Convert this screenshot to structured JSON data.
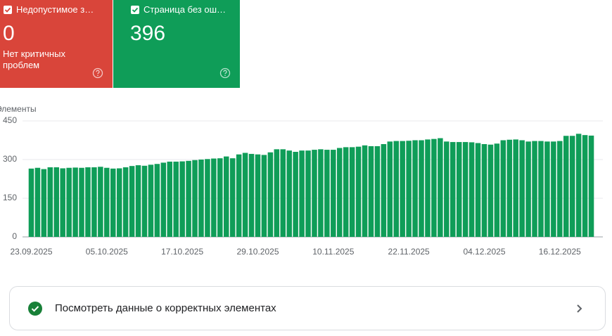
{
  "cards": [
    {
      "label": "Недопустимое з…",
      "value": 0,
      "description": "Нет критичных проблем"
    },
    {
      "label": "Страница без ош…",
      "value": 396
    }
  ],
  "chart_data": {
    "type": "bar",
    "y_label": "Элементы",
    "color": "#0f9d58",
    "grid": true,
    "ylim": [
      0,
      450
    ],
    "yticks": [
      0,
      150,
      300,
      450
    ],
    "categories": [
      "23.09.2025",
      null,
      null,
      null,
      null,
      null,
      null,
      null,
      null,
      null,
      null,
      null,
      "05.10.2025",
      null,
      null,
      null,
      null,
      null,
      null,
      null,
      null,
      null,
      null,
      null,
      "17.10.2025",
      null,
      null,
      null,
      null,
      null,
      null,
      null,
      null,
      null,
      null,
      null,
      "29.10.2025",
      null,
      null,
      null,
      null,
      null,
      null,
      null,
      null,
      null,
      null,
      null,
      "10.11.2025",
      null,
      null,
      null,
      null,
      null,
      null,
      null,
      null,
      null,
      null,
      null,
      "22.11.2025",
      null,
      null,
      null,
      null,
      null,
      null,
      null,
      null,
      null,
      null,
      null,
      "04.12.2025",
      null,
      null,
      null,
      null,
      null,
      null,
      null,
      null,
      null,
      null,
      null,
      "16.12.2025",
      null,
      null,
      null,
      null,
      null
    ],
    "values": [
      265,
      268,
      263,
      270,
      270,
      266,
      268,
      269,
      268,
      270,
      270,
      272,
      268,
      265,
      266,
      270,
      275,
      278,
      276,
      280,
      283,
      288,
      292,
      292,
      293,
      295,
      298,
      300,
      302,
      304,
      305,
      312,
      305,
      320,
      326,
      322,
      320,
      318,
      328,
      340,
      340,
      335,
      330,
      335,
      335,
      338,
      340,
      338,
      338,
      345,
      348,
      348,
      350,
      355,
      352,
      352,
      360,
      370,
      372,
      372,
      373,
      375,
      375,
      378,
      380,
      383,
      370,
      368,
      368,
      368,
      367,
      364,
      360,
      358,
      362,
      375,
      377,
      378,
      375,
      370,
      372,
      372,
      370,
      370,
      372,
      392,
      392,
      400,
      395,
      393
    ]
  },
  "action": {
    "label": "Посмотреть данные о корректных элементах"
  }
}
